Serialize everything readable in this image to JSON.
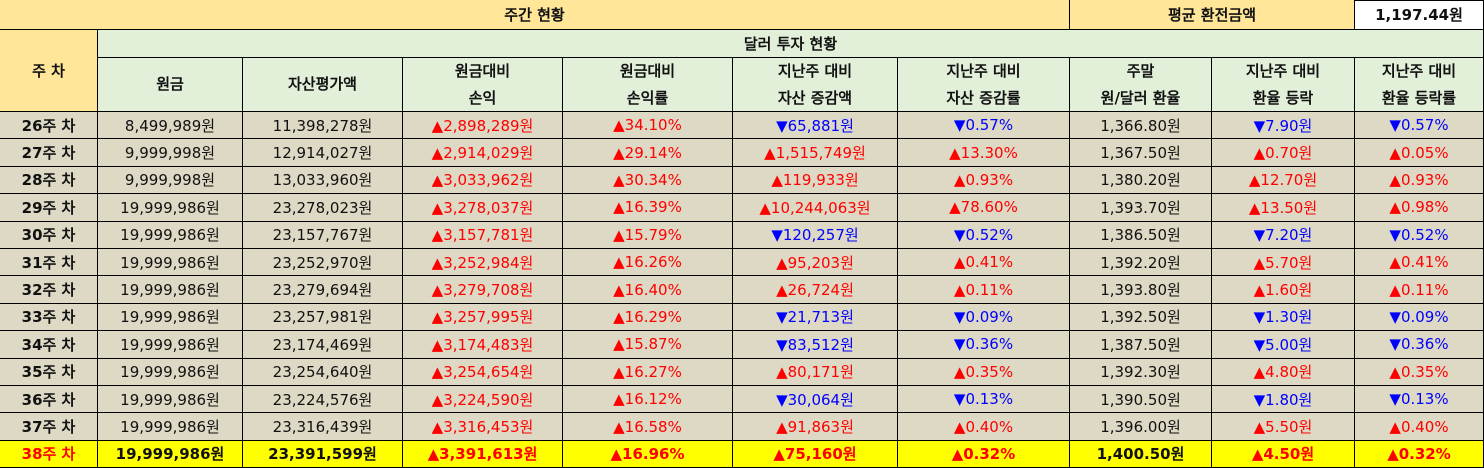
{
  "header": {
    "weekly_status": "주간 현황",
    "avg_rate_label": "평균 환전금액",
    "avg_rate_value": "1,197.44원",
    "week_col": "주 차",
    "dollar_status": "달러 투자 현황"
  },
  "columns": [
    [
      "원금"
    ],
    [
      "자산평가액"
    ],
    [
      "원금대비",
      "손익"
    ],
    [
      "원금대비",
      "손익률"
    ],
    [
      "지난주 대비",
      "자산 증감액"
    ],
    [
      "지난주 대비",
      "자산 증감률"
    ],
    [
      "주말",
      "원/달러 환율"
    ],
    [
      "지난주 대비",
      "환율 등락"
    ],
    [
      "지난주 대비",
      "환율 등락률"
    ]
  ],
  "rows": [
    {
      "week": "26주 차",
      "principal": "8,499,989원",
      "asset": "11,398,278원",
      "pl": "▲2,898,289원",
      "pl_rate": "▲34.10%",
      "chg": "▼65,881원",
      "chg_rate": "▼0.57%",
      "fx": "1,366.80원",
      "fx_chg": "▼7.90원",
      "fx_rate": "▼0.57%"
    },
    {
      "week": "27주 차",
      "principal": "9,999,998원",
      "asset": "12,914,027원",
      "pl": "▲2,914,029원",
      "pl_rate": "▲29.14%",
      "chg": "▲1,515,749원",
      "chg_rate": "▲13.30%",
      "fx": "1,367.50원",
      "fx_chg": "▲0.70원",
      "fx_rate": "▲0.05%"
    },
    {
      "week": "28주 차",
      "principal": "9,999,998원",
      "asset": "13,033,960원",
      "pl": "▲3,033,962원",
      "pl_rate": "▲30.34%",
      "chg": "▲119,933원",
      "chg_rate": "▲0.93%",
      "fx": "1,380.20원",
      "fx_chg": "▲12.70원",
      "fx_rate": "▲0.93%"
    },
    {
      "week": "29주 차",
      "principal": "19,999,986원",
      "asset": "23,278,023원",
      "pl": "▲3,278,037원",
      "pl_rate": "▲16.39%",
      "chg": "▲10,244,063원",
      "chg_rate": "▲78.60%",
      "fx": "1,393.70원",
      "fx_chg": "▲13.50원",
      "fx_rate": "▲0.98%"
    },
    {
      "week": "30주 차",
      "principal": "19,999,986원",
      "asset": "23,157,767원",
      "pl": "▲3,157,781원",
      "pl_rate": "▲15.79%",
      "chg": "▼120,257원",
      "chg_rate": "▼0.52%",
      "fx": "1,386.50원",
      "fx_chg": "▼7.20원",
      "fx_rate": "▼0.52%"
    },
    {
      "week": "31주 차",
      "principal": "19,999,986원",
      "asset": "23,252,970원",
      "pl": "▲3,252,984원",
      "pl_rate": "▲16.26%",
      "chg": "▲95,203원",
      "chg_rate": "▲0.41%",
      "fx": "1,392.20원",
      "fx_chg": "▲5.70원",
      "fx_rate": "▲0.41%"
    },
    {
      "week": "32주 차",
      "principal": "19,999,986원",
      "asset": "23,279,694원",
      "pl": "▲3,279,708원",
      "pl_rate": "▲16.40%",
      "chg": "▲26,724원",
      "chg_rate": "▲0.11%",
      "fx": "1,393.80원",
      "fx_chg": "▲1.60원",
      "fx_rate": "▲0.11%"
    },
    {
      "week": "33주 차",
      "principal": "19,999,986원",
      "asset": "23,257,981원",
      "pl": "▲3,257,995원",
      "pl_rate": "▲16.29%",
      "chg": "▼21,713원",
      "chg_rate": "▼0.09%",
      "fx": "1,392.50원",
      "fx_chg": "▼1.30원",
      "fx_rate": "▼0.09%"
    },
    {
      "week": "34주 차",
      "principal": "19,999,986원",
      "asset": "23,174,469원",
      "pl": "▲3,174,483원",
      "pl_rate": "▲15.87%",
      "chg": "▼83,512원",
      "chg_rate": "▼0.36%",
      "fx": "1,387.50원",
      "fx_chg": "▼5.00원",
      "fx_rate": "▼0.36%"
    },
    {
      "week": "35주 차",
      "principal": "19,999,986원",
      "asset": "23,254,640원",
      "pl": "▲3,254,654원",
      "pl_rate": "▲16.27%",
      "chg": "▲80,171원",
      "chg_rate": "▲0.35%",
      "fx": "1,392.30원",
      "fx_chg": "▲4.80원",
      "fx_rate": "▲0.35%"
    },
    {
      "week": "36주 차",
      "principal": "19,999,986원",
      "asset": "23,224,576원",
      "pl": "▲3,224,590원",
      "pl_rate": "▲16.12%",
      "chg": "▼30,064원",
      "chg_rate": "▼0.13%",
      "fx": "1,390.50원",
      "fx_chg": "▼1.80원",
      "fx_rate": "▼0.13%"
    },
    {
      "week": "37주 차",
      "principal": "19,999,986원",
      "asset": "23,316,439원",
      "pl": "▲3,316,453원",
      "pl_rate": "▲16.58%",
      "chg": "▲91,863원",
      "chg_rate": "▲0.40%",
      "fx": "1,396.00원",
      "fx_chg": "▲5.50원",
      "fx_rate": "▲0.40%"
    },
    {
      "week": "38주 차",
      "principal": "19,999,986원",
      "asset": "23,391,599원",
      "pl": "▲3,391,613원",
      "pl_rate": "▲16.96%",
      "chg": "▲75,160원",
      "chg_rate": "▲0.32%",
      "fx": "1,400.50원",
      "fx_chg": "▲4.50원",
      "fx_rate": "▲0.32%"
    }
  ],
  "colors": {
    "header_yellow": "#ffe699",
    "header_green": "#e2efd9",
    "body_tan": "#ddd9c4",
    "highlight": "#ffff00",
    "up": "#ff0000",
    "down": "#0000ff"
  }
}
